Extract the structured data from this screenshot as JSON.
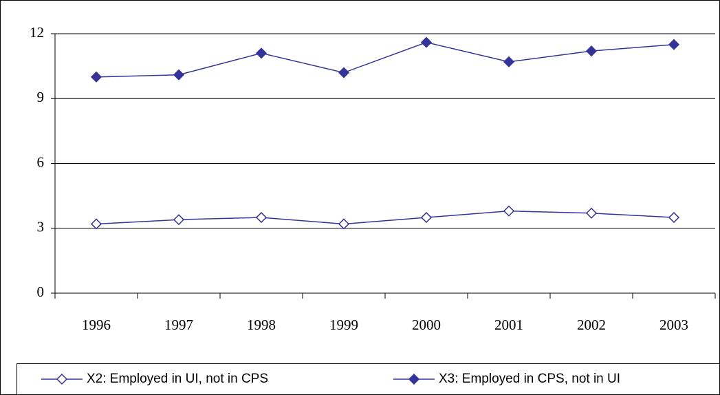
{
  "chart_data": {
    "type": "line",
    "categories": [
      "1996",
      "1997",
      "1998",
      "1999",
      "2000",
      "2001",
      "2002",
      "2003"
    ],
    "series": [
      {
        "name": "X2:  Employed in UI, not in CPS",
        "color": "#333399",
        "marker": "open-diamond",
        "values": [
          3.2,
          3.4,
          3.5,
          3.2,
          3.5,
          3.8,
          3.7,
          3.5
        ]
      },
      {
        "name": "X3:  Employed in CPS, not in UI",
        "color": "#333399",
        "marker": "filled-diamond",
        "values": [
          10.0,
          10.1,
          11.1,
          10.2,
          11.6,
          10.7,
          11.2,
          11.5
        ]
      }
    ],
    "ylim": [
      0,
      12
    ],
    "yticks": [
      0,
      3,
      6,
      9,
      12
    ],
    "grid": true,
    "legend": "bottom"
  }
}
